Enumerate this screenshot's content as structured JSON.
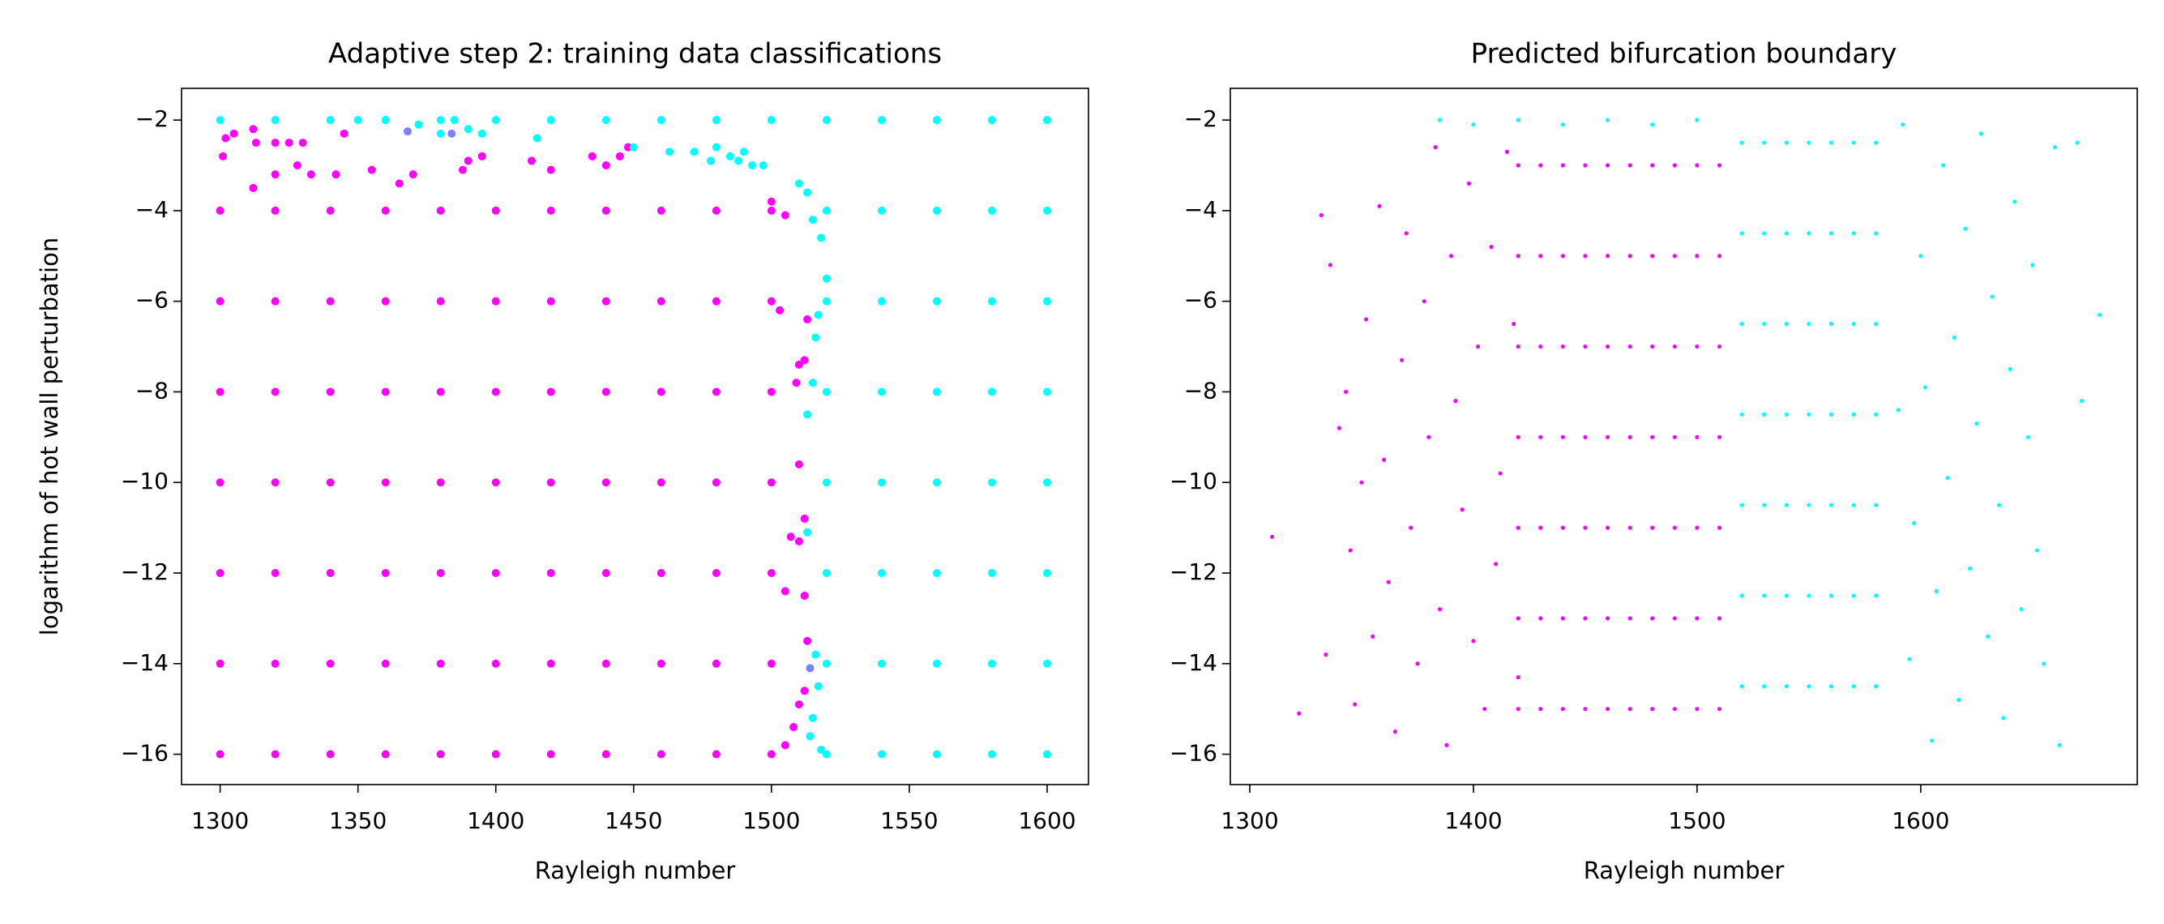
{
  "chart_data": [
    {
      "type": "scatter",
      "title": "Adaptive step 2: training data classifications",
      "xlabel": "Rayleigh number",
      "ylabel": "logarithm of hot wall perturbation",
      "xlim": [
        1286,
        1615
      ],
      "ylim": [
        -16.67,
        -1.3
      ],
      "xticks": [
        1300,
        1350,
        1400,
        1450,
        1500,
        1550,
        1600
      ],
      "yticks": [
        {
          "value": -16,
          "label": "−16"
        },
        {
          "value": -14,
          "label": "−14"
        },
        {
          "value": -12,
          "label": "−12"
        },
        {
          "value": -10,
          "label": "−10"
        },
        {
          "value": -8,
          "label": "−8"
        },
        {
          "value": -6,
          "label": "−6"
        },
        {
          "value": -4,
          "label": "−4"
        },
        {
          "value": -2,
          "label": "−2"
        }
      ],
      "series": [
        {
          "color": "#ff00ff",
          "x": [
            1300,
            1320,
            1340,
            1360,
            1380,
            1400,
            1420,
            1440,
            1460,
            1480,
            1500,
            1300,
            1320,
            1340,
            1360,
            1380,
            1400,
            1420,
            1440,
            1460,
            1480,
            1500,
            1300,
            1320,
            1340,
            1360,
            1380,
            1400,
            1420,
            1440,
            1460,
            1480,
            1500,
            1300,
            1320,
            1340,
            1360,
            1380,
            1400,
            1420,
            1440,
            1460,
            1480,
            1500,
            1300,
            1320,
            1340,
            1360,
            1380,
            1400,
            1420,
            1440,
            1460,
            1480,
            1500,
            1300,
            1320,
            1340,
            1360,
            1380,
            1400,
            1420,
            1440,
            1460,
            1480,
            1500,
            1300,
            1320,
            1340,
            1360,
            1380,
            1400,
            1420,
            1440,
            1460,
            1480,
            1500,
            1302,
            1305,
            1301,
            1313,
            1312,
            1320,
            1325,
            1330,
            1312,
            1320,
            1328,
            1333,
            1342,
            1345,
            1355,
            1365,
            1370,
            1388,
            1390,
            1395,
            1413,
            1420,
            1435,
            1440,
            1445,
            1448,
            1500,
            1505,
            1503,
            1513,
            1510,
            1512,
            1509,
            1510,
            1512,
            1507,
            1510,
            1505,
            1512,
            1513,
            1512,
            1510,
            1508,
            1505
          ],
          "values": [
            -4,
            -4,
            -4,
            -4,
            -4,
            -4,
            -4,
            -4,
            -4,
            -4,
            -4,
            -6,
            -6,
            -6,
            -6,
            -6,
            -6,
            -6,
            -6,
            -6,
            -6,
            -6,
            -8,
            -8,
            -8,
            -8,
            -8,
            -8,
            -8,
            -8,
            -8,
            -8,
            -8,
            -10,
            -10,
            -10,
            -10,
            -10,
            -10,
            -10,
            -10,
            -10,
            -10,
            -10,
            -12,
            -12,
            -12,
            -12,
            -12,
            -12,
            -12,
            -12,
            -12,
            -12,
            -12,
            -14,
            -14,
            -14,
            -14,
            -14,
            -14,
            -14,
            -14,
            -14,
            -14,
            -14,
            -16,
            -16,
            -16,
            -16,
            -16,
            -16,
            -16,
            -16,
            -16,
            -16,
            -16,
            -2.4,
            -2.3,
            -2.8,
            -2.5,
            -2.2,
            -2.5,
            -2.5,
            -2.5,
            -3.5,
            -3.2,
            -3.0,
            -3.2,
            -3.2,
            -2.3,
            -3.1,
            -3.4,
            -3.2,
            -3.1,
            -2.9,
            -2.8,
            -2.9,
            -3.1,
            -2.8,
            -3.0,
            -2.8,
            -2.6,
            -3.8,
            -4.1,
            -6.2,
            -6.4,
            -7.4,
            -7.3,
            -7.8,
            -9.6,
            -10.8,
            -11.2,
            -11.3,
            -12.4,
            -12.5,
            -13.5,
            -14.6,
            -14.9,
            -15.4,
            -15.8
          ]
        },
        {
          "color": "#00ffff",
          "x": [
            1300,
            1320,
            1340,
            1360,
            1380,
            1400,
            1420,
            1440,
            1460,
            1480,
            1500,
            1520,
            1540,
            1560,
            1580,
            1600,
            1520,
            1540,
            1560,
            1580,
            1600,
            1520,
            1540,
            1560,
            1580,
            1600,
            1520,
            1540,
            1560,
            1580,
            1600,
            1520,
            1540,
            1560,
            1580,
            1600,
            1520,
            1540,
            1560,
            1580,
            1600,
            1520,
            1540,
            1560,
            1580,
            1600,
            1520,
            1540,
            1560,
            1580,
            1600,
            1350,
            1360,
            1372,
            1380,
            1385,
            1390,
            1395,
            1415,
            1450,
            1463,
            1472,
            1478,
            1480,
            1485,
            1488,
            1490,
            1493,
            1497,
            1510,
            1513,
            1515,
            1518,
            1520,
            1517,
            1516,
            1515,
            1513,
            1513,
            1516,
            1517,
            1515,
            1514,
            1518
          ],
          "values": [
            -2,
            -2,
            -2,
            -2,
            -2,
            -2,
            -2,
            -2,
            -2,
            -2,
            -2,
            -2,
            -2,
            -2,
            -2,
            -2,
            -4,
            -4,
            -4,
            -4,
            -4,
            -6,
            -6,
            -6,
            -6,
            -6,
            -8,
            -8,
            -8,
            -8,
            -8,
            -10,
            -10,
            -10,
            -10,
            -10,
            -12,
            -12,
            -12,
            -12,
            -12,
            -14,
            -14,
            -14,
            -14,
            -14,
            -16,
            -16,
            -16,
            -16,
            -16,
            -2.0,
            -2.0,
            -2.1,
            -2.3,
            -2.0,
            -2.2,
            -2.3,
            -2.4,
            -2.6,
            -2.7,
            -2.7,
            -2.9,
            -2.6,
            -2.8,
            -2.9,
            -2.7,
            -3.0,
            -3.0,
            -3.4,
            -3.6,
            -4.2,
            -4.6,
            -5.5,
            -6.3,
            -6.8,
            -7.8,
            -8.5,
            -11.1,
            -13.8,
            -14.5,
            -15.2,
            -15.6,
            -15.9
          ]
        },
        {
          "color": "#7f80ff",
          "x": [
            1368,
            1384,
            1514
          ],
          "values": [
            -2.25,
            -2.3,
            -14.1
          ]
        }
      ]
    },
    {
      "type": "scatter",
      "title": "Predicted bifurcation boundary",
      "xlabel": "Rayleigh number",
      "xlim": [
        1291.3,
        1696.8
      ],
      "ylim": [
        -16.67,
        -1.3
      ],
      "xticks": [
        1300,
        1400,
        1500,
        1600
      ],
      "yticks": [
        {
          "value": -16,
          "label": "−16"
        },
        {
          "value": -14,
          "label": "−14"
        },
        {
          "value": -12,
          "label": "−12"
        },
        {
          "value": -10,
          "label": "−10"
        },
        {
          "value": -8,
          "label": "−8"
        },
        {
          "value": -6,
          "label": "−6"
        },
        {
          "value": -4,
          "label": "−4"
        },
        {
          "value": -2,
          "label": "−2"
        }
      ],
      "series": [
        {
          "color": "#ff00ff",
          "x": [
            1420,
            1430,
            1440,
            1450,
            1460,
            1470,
            1480,
            1490,
            1500,
            1510,
            1420,
            1430,
            1440,
            1450,
            1460,
            1470,
            1480,
            1490,
            1500,
            1510,
            1420,
            1430,
            1440,
            1450,
            1460,
            1470,
            1480,
            1490,
            1500,
            1510,
            1420,
            1430,
            1440,
            1450,
            1460,
            1470,
            1480,
            1490,
            1500,
            1510,
            1420,
            1430,
            1440,
            1450,
            1460,
            1470,
            1480,
            1490,
            1500,
            1510,
            1420,
            1430,
            1440,
            1450,
            1460,
            1470,
            1480,
            1490,
            1500,
            1510,
            1420,
            1430,
            1440,
            1450,
            1460,
            1470,
            1480,
            1490,
            1500,
            1510,
            1310,
            1322,
            1332,
            1334,
            1336,
            1340,
            1343,
            1345,
            1347,
            1350,
            1352,
            1355,
            1358,
            1360,
            1362,
            1365,
            1368,
            1370,
            1372,
            1375,
            1378,
            1380,
            1383,
            1385,
            1388,
            1390,
            1392,
            1395,
            1398,
            1400,
            1402,
            1405,
            1408,
            1410,
            1412,
            1415,
            1418,
            1420
          ],
          "values": [
            -3,
            -3,
            -3,
            -3,
            -3,
            -3,
            -3,
            -3,
            -3,
            -3,
            -5,
            -5,
            -5,
            -5,
            -5,
            -5,
            -5,
            -5,
            -5,
            -5,
            -7,
            -7,
            -7,
            -7,
            -7,
            -7,
            -7,
            -7,
            -7,
            -7,
            -9,
            -9,
            -9,
            -9,
            -9,
            -9,
            -9,
            -9,
            -9,
            -9,
            -11,
            -11,
            -11,
            -11,
            -11,
            -11,
            -11,
            -11,
            -11,
            -11,
            -13,
            -13,
            -13,
            -13,
            -13,
            -13,
            -13,
            -13,
            -13,
            -13,
            -15,
            -15,
            -15,
            -15,
            -15,
            -15,
            -15,
            -15,
            -15,
            -15,
            -11.2,
            -15.1,
            -4.1,
            -13.8,
            -5.2,
            -8.8,
            -8.0,
            -11.5,
            -14.9,
            -10.0,
            -6.4,
            -13.4,
            -3.9,
            -9.5,
            -12.2,
            -15.5,
            -7.3,
            -4.5,
            -11.0,
            -14.0,
            -6.0,
            -9.0,
            -2.6,
            -12.8,
            -15.8,
            -5.0,
            -8.2,
            -10.6,
            -3.4,
            -13.5,
            -7.0,
            -15.0,
            -4.8,
            -11.8,
            -9.8,
            -2.7,
            -6.5,
            -14.3
          ]
        },
        {
          "color": "#00ffff",
          "x": [
            1520,
            1530,
            1540,
            1550,
            1560,
            1570,
            1580,
            1520,
            1530,
            1540,
            1550,
            1560,
            1570,
            1580,
            1520,
            1530,
            1540,
            1550,
            1560,
            1570,
            1580,
            1520,
            1530,
            1540,
            1550,
            1560,
            1570,
            1580,
            1520,
            1530,
            1540,
            1550,
            1560,
            1570,
            1580,
            1520,
            1530,
            1540,
            1550,
            1560,
            1570,
            1580,
            1520,
            1530,
            1540,
            1550,
            1560,
            1570,
            1580,
            1680,
            1672,
            1670,
            1662,
            1660,
            1655,
            1652,
            1650,
            1648,
            1645,
            1642,
            1640,
            1637,
            1635,
            1632,
            1630,
            1627,
            1625,
            1622,
            1620,
            1617,
            1615,
            1612,
            1610,
            1607,
            1605,
            1602,
            1600,
            1597,
            1595,
            1592,
            1590,
            1500,
            1480,
            1460,
            1440,
            1420,
            1400,
            1385
          ],
          "values": [
            -2.5,
            -2.5,
            -2.5,
            -2.5,
            -2.5,
            -2.5,
            -2.5,
            -4.5,
            -4.5,
            -4.5,
            -4.5,
            -4.5,
            -4.5,
            -4.5,
            -6.5,
            -6.5,
            -6.5,
            -6.5,
            -6.5,
            -6.5,
            -6.5,
            -8.5,
            -8.5,
            -8.5,
            -8.5,
            -8.5,
            -8.5,
            -8.5,
            -10.5,
            -10.5,
            -10.5,
            -10.5,
            -10.5,
            -10.5,
            -10.5,
            -12.5,
            -12.5,
            -12.5,
            -12.5,
            -12.5,
            -12.5,
            -12.5,
            -14.5,
            -14.5,
            -14.5,
            -14.5,
            -14.5,
            -14.5,
            -14.5,
            -6.3,
            -8.2,
            -2.5,
            -15.8,
            -2.6,
            -14.0,
            -11.5,
            -5.2,
            -9.0,
            -12.8,
            -3.8,
            -7.5,
            -15.2,
            -10.5,
            -5.9,
            -13.4,
            -2.3,
            -8.7,
            -11.9,
            -4.4,
            -14.8,
            -6.8,
            -9.9,
            -3.0,
            -12.4,
            -15.7,
            -7.9,
            -5.0,
            -10.9,
            -13.9,
            -2.1,
            -8.4,
            -2.0,
            -2.1,
            -2.0,
            -2.1,
            -2.0,
            -2.1,
            -2.0
          ]
        }
      ]
    }
  ]
}
